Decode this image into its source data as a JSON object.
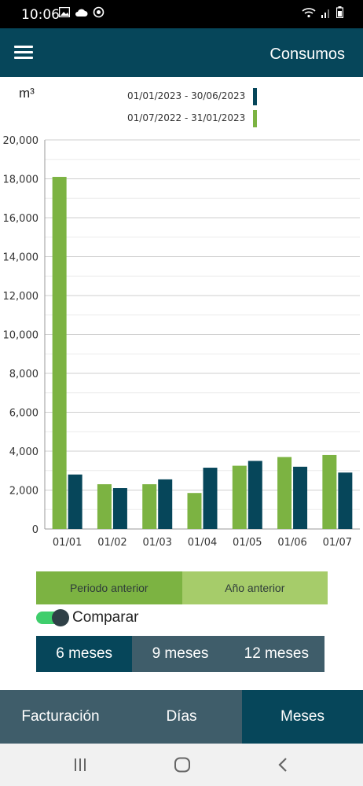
{
  "status_bar": {
    "time": "10:06",
    "left_icons": [
      "image-icon",
      "cloud-icon",
      "sync-icon"
    ],
    "right_icons": [
      "wifi-icon",
      "signal-icon",
      "battery-icon"
    ]
  },
  "app_bar": {
    "menu_icon": "hamburger-menu-icon",
    "title": "Consumos"
  },
  "chart_data": {
    "type": "bar",
    "unit_label": "m³",
    "categories": [
      "01/01",
      "01/02",
      "01/03",
      "01/04",
      "01/05",
      "01/06",
      "01/07"
    ],
    "series": [
      {
        "name": "01/07/2022 - 31/01/2023",
        "color": "#7cb342",
        "values": [
          18100,
          2300,
          2300,
          1850,
          3250,
          3700,
          3800
        ]
      },
      {
        "name": "01/01/2023 - 30/06/2023",
        "color": "#06465a",
        "values": [
          2800,
          2100,
          2550,
          3150,
          3500,
          3200,
          2900
        ]
      }
    ],
    "legend_order": [
      "01/01/2023 - 30/06/2023",
      "01/07/2022 - 31/01/2023"
    ],
    "ylim": [
      0,
      20000
    ],
    "yticks": [
      "0",
      "2,000",
      "4,000",
      "6,000",
      "8,000",
      "10,000",
      "12,000",
      "14,000",
      "16,000",
      "18,000",
      "20,000"
    ],
    "grid": true,
    "legend_placement": "top-center"
  },
  "period_toggle": {
    "options": [
      {
        "label": "Periodo anterior",
        "selected": true,
        "color": "#7cb342"
      },
      {
        "label": "Año anterior",
        "selected": false,
        "color": "#a6cc6a"
      }
    ]
  },
  "compare": {
    "label": "Comparar",
    "enabled": true,
    "color": "#3fce6c"
  },
  "months": {
    "options": [
      {
        "label": "6 meses",
        "selected": true
      },
      {
        "label": "9 meses",
        "selected": false
      },
      {
        "label": "12 meses",
        "selected": false
      }
    ]
  },
  "bottom_tabs": {
    "tabs": [
      {
        "label": "Facturación",
        "selected": false
      },
      {
        "label": "Días",
        "selected": false
      },
      {
        "label": "Meses",
        "selected": true
      }
    ]
  },
  "nav_bar": {
    "buttons": [
      "recent-apps-icon",
      "home-icon",
      "back-icon"
    ]
  }
}
